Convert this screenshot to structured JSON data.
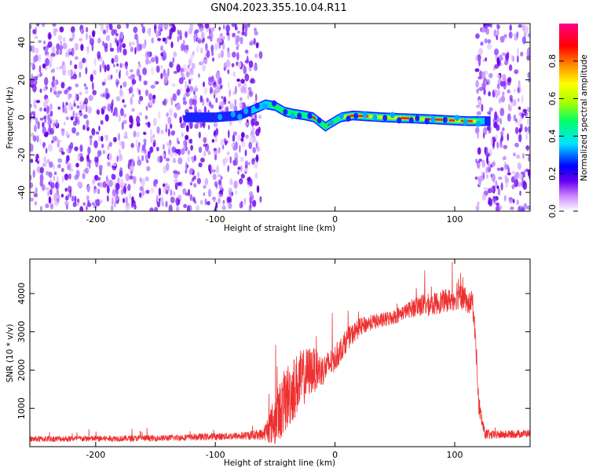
{
  "title": "GN04.2023.355.10.04.R11",
  "chart_data": [
    {
      "type": "heatmap",
      "xlabel": "Height of straight line (km)",
      "ylabel": "Frequency (Hz)",
      "xlim": [
        -255,
        163
      ],
      "ylim": [
        -50,
        50
      ],
      "x_ticks": [
        -200,
        -100,
        0,
        100
      ],
      "y_ticks": [
        -40,
        -20,
        0,
        20,
        40
      ],
      "colorbar": {
        "label": "Normalized spectral amplitude",
        "range": [
          0,
          1
        ],
        "ticks": [
          0.0,
          0.2,
          0.4,
          0.6,
          0.8
        ],
        "colors": [
          "#ffffff",
          "#cc88ff",
          "#6600ee",
          "#0000ff",
          "#00e5ff",
          "#00ff66",
          "#aaff00",
          "#ffff00",
          "#ff8800",
          "#ff0000",
          "#ff0088"
        ]
      },
      "noise_regions": [
        [
          -255,
          -62
        ],
        [
          118,
          163
        ]
      ],
      "ridge": [
        {
          "x": -125,
          "y": 0
        },
        {
          "x": -100,
          "y": 0
        },
        {
          "x": -80,
          "y": 1
        },
        {
          "x": -65,
          "y": 5
        },
        {
          "x": -58,
          "y": 7
        },
        {
          "x": -50,
          "y": 6
        },
        {
          "x": -42,
          "y": 3
        },
        {
          "x": -35,
          "y": 2
        },
        {
          "x": -25,
          "y": 1
        },
        {
          "x": -18,
          "y": 0
        },
        {
          "x": -12,
          "y": -3
        },
        {
          "x": -8,
          "y": -5
        },
        {
          "x": -3,
          "y": -3
        },
        {
          "x": 5,
          "y": 0
        },
        {
          "x": 15,
          "y": 1
        },
        {
          "x": 40,
          "y": 0
        },
        {
          "x": 80,
          "y": -1
        },
        {
          "x": 110,
          "y": -2
        },
        {
          "x": 130,
          "y": -2
        }
      ]
    },
    {
      "type": "line",
      "xlabel": "Height of straight line (km)",
      "ylabel": "SNR (10 * v/v)",
      "xlim": [
        -255,
        163
      ],
      "ylim": [
        0,
        4900
      ],
      "x_ticks": [
        -200,
        -100,
        0,
        100
      ],
      "y_ticks": [
        1000,
        2000,
        3000,
        4000
      ],
      "series": [
        {
          "color": "#ee3030",
          "x": [
            -255,
            -150,
            -80,
            -60,
            -50,
            -40,
            -30,
            -20,
            -10,
            0,
            10,
            20,
            30,
            40,
            50,
            60,
            70,
            80,
            90,
            100,
            105,
            110,
            115,
            118,
            120,
            125,
            130,
            163
          ],
          "y": [
            200,
            220,
            280,
            320,
            700,
            1300,
            1700,
            2000,
            2000,
            2300,
            2800,
            3100,
            3250,
            3300,
            3400,
            3550,
            3700,
            3700,
            3800,
            3850,
            4200,
            3700,
            3800,
            2500,
            1100,
            350,
            300,
            350
          ],
          "noise": [
            80,
            80,
            100,
            150,
            700,
            900,
            800,
            650,
            400,
            350,
            300,
            250,
            200,
            200,
            200,
            200,
            300,
            300,
            300,
            300,
            600,
            250,
            300,
            300,
            300,
            150,
            120,
            100
          ]
        }
      ]
    }
  ]
}
